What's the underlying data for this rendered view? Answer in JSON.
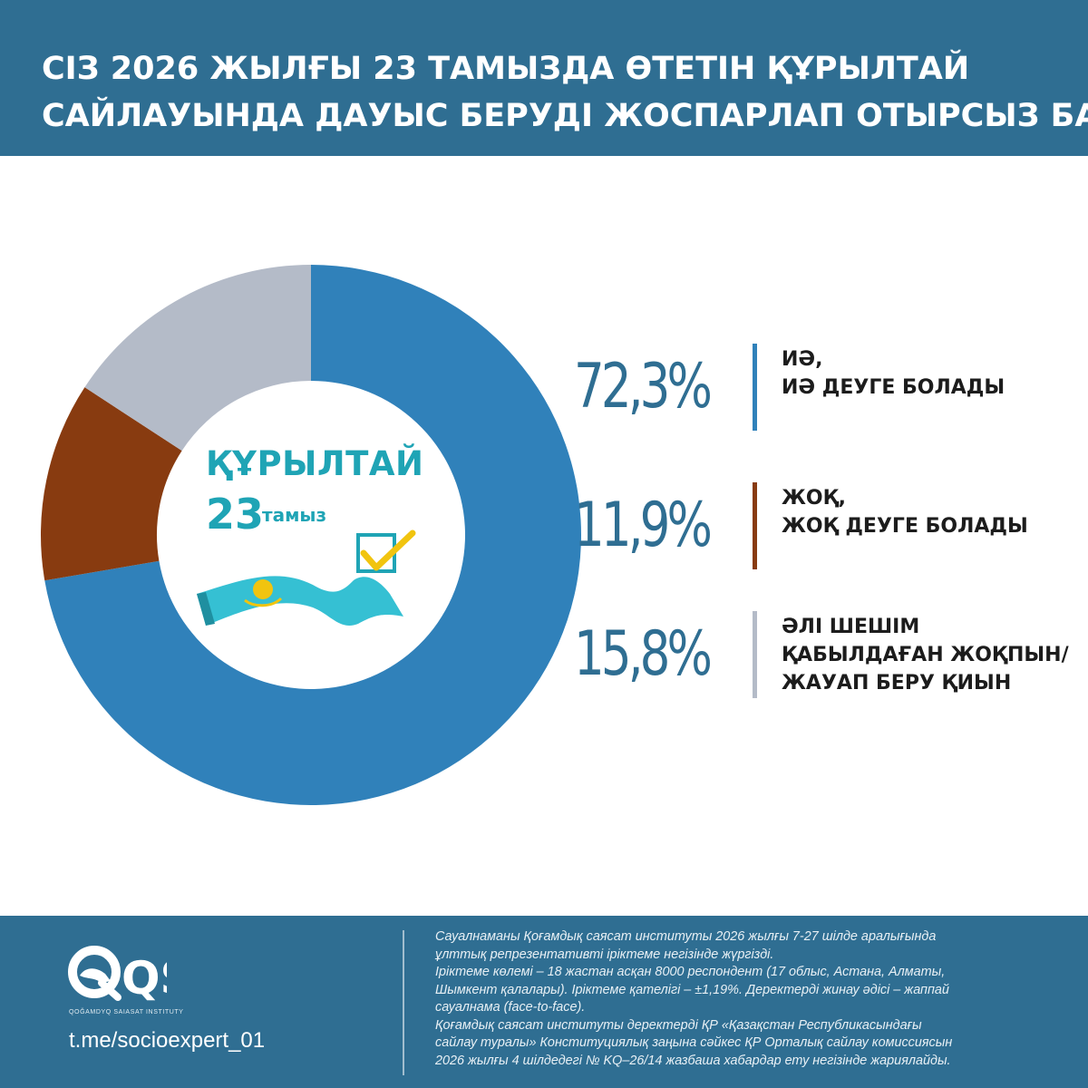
{
  "header": {
    "title_line1": "СІЗ 2026 ЖЫЛҒЫ 23 ТАМЫЗДА ӨТЕТІН ҚҰРЫЛТАЙ",
    "title_line2": "САЙЛАУЫНДА ДАУЫС БЕРУДІ ЖОСПАРЛАП ОТЫРСЫЗ БА?"
  },
  "center_logo": {
    "word": "ҚҰРЫЛТАЙ",
    "number": "23",
    "month": "тамыз"
  },
  "chart_data": {
    "type": "pie",
    "style": "donut",
    "categories": [
      "ИӘ, ИӘ ДЕУГЕ БОЛАДЫ",
      "ЖОҚ, ЖОҚ ДЕУГЕ БОЛАДЫ",
      "ӘЛІ ШЕШІМ ҚАБЫЛДАҒАН ЖОҚПЫН/ ЖАУАП БЕРУ ҚИЫН"
    ],
    "values": [
      72.3,
      11.9,
      15.8
    ],
    "colors": [
      "#3081ba",
      "#883b10",
      "#b4bbc8"
    ],
    "legend_placement": "right"
  },
  "legend": [
    {
      "value": "72,3%",
      "line1": "ИӘ,",
      "line2": "ИӘ ДЕУГЕ БОЛАДЫ",
      "line3": "",
      "color": "#3081ba"
    },
    {
      "value": "11,9%",
      "line1": "ЖОҚ,",
      "line2": "ЖОҚ ДЕУГЕ БОЛАДЫ",
      "line3": "",
      "color": "#883b10"
    },
    {
      "value": "15,8%",
      "line1": "ӘЛІ ШЕШІМ",
      "line2": "ҚАБЫЛДАҒАН ЖОҚПЫН/",
      "line3": "ЖАУАП БЕРУ ҚИЫН",
      "color": "#b4bbc8"
    }
  ],
  "footer": {
    "org_logo": "QSI",
    "org_name": "QOĞAMDYQ SAIASAT INSTITUTY",
    "telegram": "t.me/socioexpert_01",
    "note_lines": [
      "Сауалнаманы Қоғамдық саясат институты 2026 жылғы 7-27 шілде аралығында",
      "ұлттық репрезентативті іріктеме негізінде жүргізді.",
      "Іріктеме көлемі – 18 жастан асқан 8000 респондент (17 облыс, Астана, Алматы,",
      "Шымкент қалалары). Іріктеме қателігі – ±1,19%. Деректерді жинау әдісі – жаппай",
      "сауалнама (face-to-face).",
      "Қоғамдық саясат институты деректерді ҚР «Қазақстан Республикасындағы",
      "сайлау туралы» Конституциялық заңына сәйкес ҚР Орталық сайлау комиссиясын",
      "2026 жылғы 4 шілдедегі № KQ–26/14 жазбаша хабардар ету негізінде жариялайды."
    ]
  }
}
